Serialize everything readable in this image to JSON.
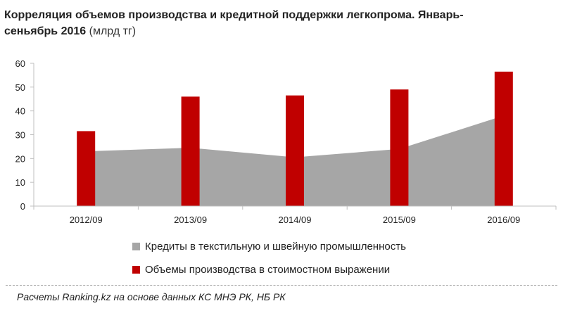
{
  "title": {
    "main": "Корреляция  объемов  производства  и кредитной  поддержки легкопрома. Январь-сеньябрь   2016",
    "unit": "(млрд тг)"
  },
  "colors": {
    "credits": "#a6a6a6",
    "production": "#c00000",
    "axis": "#bfbfbf",
    "text": "#222222"
  },
  "chart_data": {
    "type": "bar",
    "categories": [
      "2012/09",
      "2013/09",
      "2014/09",
      "2015/09",
      "2016/09"
    ],
    "series": [
      {
        "name": "Кредиты в текстильную и швейную промышленность",
        "type": "area",
        "color": "#a6a6a6",
        "values": [
          23,
          24.5,
          20.5,
          24,
          38
        ]
      },
      {
        "name": "Объемы производства в стоимостном выражении",
        "type": "bar",
        "color": "#c00000",
        "values": [
          31.5,
          46,
          46.5,
          49,
          56.5
        ]
      }
    ],
    "y_ticks": [
      "0",
      "10",
      "20",
      "30",
      "40",
      "50",
      "60"
    ],
    "ylim": [
      0,
      60
    ],
    "grid": false,
    "legend_position": "bottom"
  },
  "legend": [
    {
      "label": "Кредиты в текстильную и швейную промышленность",
      "color": "#a6a6a6"
    },
    {
      "label": "Объемы производства в стоимостном выражении",
      "color": "#c00000"
    }
  ],
  "source": "Расчеты Ranking.kz на основе данных  КС МНЭ РК, НБ РК"
}
